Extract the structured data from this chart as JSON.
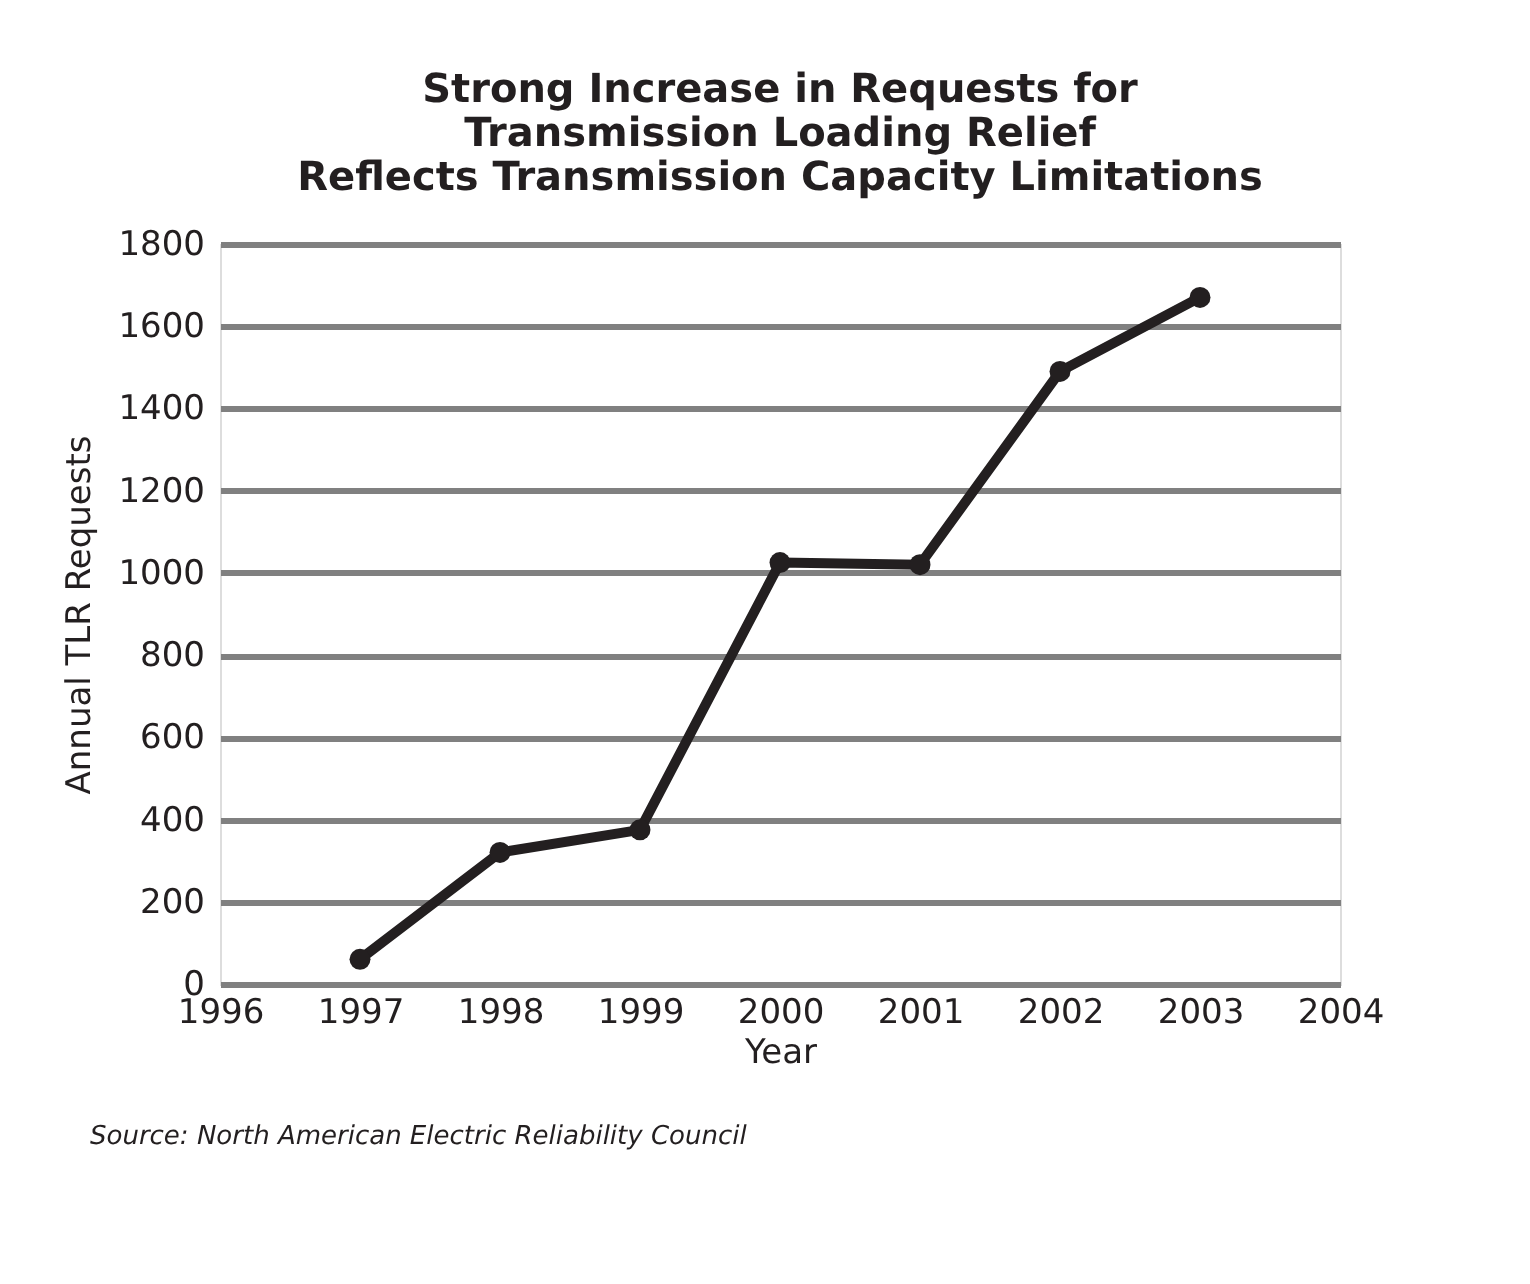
{
  "chart_data": {
    "type": "line",
    "title": "Strong Increase in Requests for\nTransmission Loading Relief\nReflects Transmission Capacity Limitations",
    "xlabel": "Year",
    "ylabel": "Annual TLR Requests",
    "x": [
      1997,
      1998,
      1999,
      2000,
      2001,
      2002,
      2003
    ],
    "series": [
      {
        "color": "#231f20",
        "values": [
          60,
          320,
          375,
          1025,
          1020,
          1490,
          1670
        ]
      }
    ],
    "xlim": [
      1996,
      2004
    ],
    "xticks": [
      1996,
      1997,
      1998,
      1999,
      2000,
      2001,
      2002,
      2003,
      2004
    ],
    "ylim": [
      0,
      1800
    ],
    "yticks": [
      0,
      200,
      400,
      600,
      800,
      1000,
      1200,
      1400,
      1600,
      1800
    ],
    "grid": "y",
    "marker": "circle",
    "line_style": "solid",
    "annotations": [
      "Source:  North American Electric Reliability Council"
    ]
  }
}
